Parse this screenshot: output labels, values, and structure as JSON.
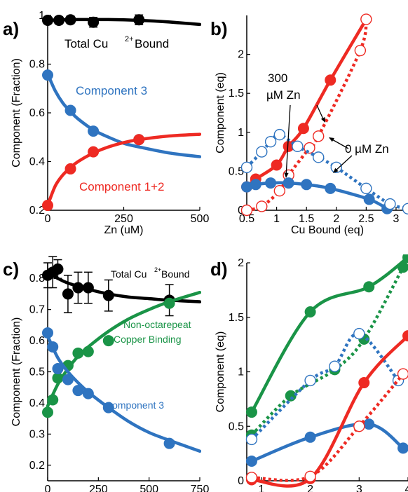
{
  "colors": {
    "black": "#000000",
    "blue": "#2f74c0",
    "red": "#ee2a23",
    "green": "#1a9447"
  },
  "chart_data": [
    {
      "panel": "a)",
      "type": "line",
      "xlabel": "Zn (uM)",
      "ylabel": "Component (Fraction)",
      "xlim": [
        0,
        500
      ],
      "ylim": [
        0.2,
        1.0
      ],
      "xticks": [
        "0",
        "250",
        "500"
      ],
      "yticks": [
        "0.2",
        "0.4",
        "0.6",
        "0.8",
        "1"
      ],
      "annotations": [
        "Total Cu",
        "2+",
        " Bound",
        "Component 3",
        "Component 1+2"
      ],
      "series": [
        {
          "color": "black",
          "points": {
            "x": [
              0,
              37,
              75,
              150,
              300
            ],
            "y": [
              0.98,
              0.98,
              0.982,
              0.972,
              0.982
            ]
          },
          "error": [
            0.01,
            0.015,
            0.015,
            0.02,
            0.02
          ],
          "fit": {
            "x": [
              0,
              50,
              100,
              150,
              200,
              250,
              300,
              350,
              400,
              450,
              500
            ],
            "y": [
              0.98,
              0.982,
              0.983,
              0.983,
              0.983,
              0.982,
              0.98,
              0.977,
              0.973,
              0.968,
              0.963
            ]
          }
        },
        {
          "color": "blue",
          "points": {
            "x": [
              0,
              75,
              150,
              300
            ],
            "y": [
              0.755,
              0.61,
              0.525,
              0.49
            ]
          },
          "fit": {
            "x": [
              0,
              25,
              50,
              75,
              100,
              150,
              200,
              250,
              300,
              400,
              500
            ],
            "y": [
              0.76,
              0.69,
              0.64,
              0.605,
              0.575,
              0.53,
              0.5,
              0.475,
              0.46,
              0.435,
              0.42
            ]
          }
        },
        {
          "color": "red",
          "points": {
            "x": [
              0,
              75,
              150,
              300
            ],
            "y": [
              0.22,
              0.37,
              0.44,
              0.49
            ]
          },
          "fit": {
            "x": [
              0,
              25,
              50,
              75,
              100,
              150,
              200,
              250,
              300,
              400,
              500
            ],
            "y": [
              0.22,
              0.3,
              0.345,
              0.375,
              0.4,
              0.435,
              0.46,
              0.478,
              0.49,
              0.505,
              0.512
            ]
          }
        }
      ]
    },
    {
      "panel": "b)",
      "type": "line",
      "xlabel": "Cu Bound (eq)",
      "ylabel": "Component (eq)",
      "xlim": [
        0.5,
        3.2
      ],
      "ylim": [
        0,
        2.5
      ],
      "xticks": [
        "0.5",
        "1",
        "1.5",
        "2",
        "2.5",
        "3"
      ],
      "yticks": [
        "0",
        "0.5",
        "1",
        "1.5",
        "2"
      ],
      "annotations": [
        "300",
        "µM Zn",
        "0 µM Zn"
      ],
      "series": [
        {
          "color": "red",
          "filled": true,
          "solid_line": true,
          "points": {
            "x": [
              0.5,
              0.65,
              1.0,
              1.2,
              1.45,
              1.9,
              2.5
            ],
            "y": [
              0.3,
              0.4,
              0.58,
              0.82,
              1.05,
              1.67,
              2.45
            ]
          }
        },
        {
          "color": "red",
          "filled": false,
          "dotted_line": true,
          "points": {
            "x": [
              0.5,
              0.75,
              1.05,
              1.2,
              1.55,
              1.7,
              2.4,
              2.5
            ],
            "y": [
              0,
              0.05,
              0.25,
              0.45,
              0.8,
              0.95,
              2.05,
              2.45
            ]
          }
        },
        {
          "color": "blue",
          "filled": true,
          "solid_line": true,
          "points": {
            "x": [
              0.5,
              0.65,
              0.9,
              1.2,
              1.5,
              1.9,
              2.55,
              2.85
            ],
            "y": [
              0.3,
              0.33,
              0.35,
              0.35,
              0.33,
              0.28,
              0.14,
              0.02
            ]
          }
        },
        {
          "color": "blue",
          "filled": false,
          "dotted_line": true,
          "points": {
            "x": [
              0.5,
              0.75,
              0.9,
              1.05,
              1.35,
              1.7,
              2.0,
              2.5,
              2.9,
              3.2
            ],
            "y": [
              0.55,
              0.75,
              0.88,
              0.97,
              0.82,
              0.68,
              0.55,
              0.28,
              0.08,
              0.02
            ]
          }
        }
      ]
    },
    {
      "panel": "c)",
      "type": "line",
      "xlabel": "Zn (uM)",
      "ylabel": "Component (Fraction)",
      "xlim": [
        0,
        750
      ],
      "ylim": [
        0.15,
        0.85
      ],
      "xticks": [
        "0",
        "250",
        "500",
        "750"
      ],
      "yticks": [
        "0.2",
        "0.3",
        "0.4",
        "0.5",
        "0.6",
        "0.7",
        "0.8"
      ],
      "annotations": [
        "Total Cu",
        "2+",
        " Bound",
        "Non-octarepeat",
        "Copper Binding",
        "Component 3"
      ],
      "series": [
        {
          "color": "black",
          "points": {
            "x": [
              0,
              25,
              50,
              100,
              150,
              200,
              300,
              600
            ],
            "y": [
              0.81,
              0.82,
              0.83,
              0.75,
              0.77,
              0.77,
              0.745,
              0.73
            ]
          },
          "error": [
            0.04,
            0.05,
            0.03,
            0.06,
            0.05,
            0.05,
            0.05,
            0.05
          ],
          "fit": {
            "x": [
              0,
              50,
              100,
              200,
              300,
              400,
              500,
              600,
              750
            ],
            "y": [
              0.82,
              0.8,
              0.785,
              0.765,
              0.75,
              0.74,
              0.735,
              0.73,
              0.725
            ]
          }
        },
        {
          "color": "green",
          "points": {
            "x": [
              0,
              25,
              50,
              100,
              150,
              200,
              300,
              600
            ],
            "y": [
              0.37,
              0.41,
              0.48,
              0.52,
              0.56,
              0.565,
              0.6,
              0.72
            ]
          },
          "fit": {
            "x": [
              0,
              50,
              100,
              150,
              200,
              300,
              400,
              500,
              600,
              750
            ],
            "y": [
              0.39,
              0.46,
              0.51,
              0.55,
              0.58,
              0.63,
              0.67,
              0.7,
              0.725,
              0.755
            ]
          }
        },
        {
          "color": "blue",
          "points": {
            "x": [
              0,
              25,
              50,
              100,
              150,
              200,
              300,
              600
            ],
            "y": [
              0.625,
              0.58,
              0.51,
              0.475,
              0.44,
              0.43,
              0.385,
              0.27
            ]
          },
          "fit": {
            "x": [
              0,
              50,
              100,
              150,
              200,
              300,
              400,
              500,
              600,
              750
            ],
            "y": [
              0.615,
              0.545,
              0.5,
              0.465,
              0.435,
              0.385,
              0.34,
              0.305,
              0.28,
              0.245
            ]
          }
        }
      ]
    },
    {
      "panel": "d)",
      "type": "line",
      "xlabel": "Cu Bound (eq)",
      "ylabel": "Component (eq)",
      "xlim": [
        0.7,
        4.0
      ],
      "ylim": [
        0,
        2.0
      ],
      "xticks": [
        "1",
        "2",
        "3",
        "4"
      ],
      "yticks": [
        "0",
        "0.5",
        "1",
        "1.5",
        "2"
      ],
      "annotations": [],
      "series": [
        {
          "color": "green",
          "filled": true,
          "solid_line": true,
          "points": {
            "x": [
              0.8,
              2.0,
              3.2,
              4.0
            ],
            "y": [
              0.63,
              1.55,
              1.78,
              2.05
            ]
          }
        },
        {
          "color": "green",
          "filled": true,
          "dotted_line": true,
          "points": {
            "x": [
              0.8,
              1.6,
              2.5,
              3.1,
              3.9
            ],
            "y": [
              0.42,
              0.78,
              1.02,
              1.3,
              1.96
            ]
          }
        },
        {
          "color": "blue",
          "filled": true,
          "solid_line": true,
          "points": {
            "x": [
              0.8,
              2.0,
              3.2,
              3.9
            ],
            "y": [
              0.18,
              0.4,
              0.52,
              0.3
            ]
          }
        },
        {
          "color": "blue",
          "filled": false,
          "dotted_line": true,
          "points": {
            "x": [
              0.8,
              2.0,
              2.5,
              3.0,
              3.8
            ],
            "y": [
              0.38,
              0.92,
              1.05,
              1.35,
              0.92
            ]
          }
        },
        {
          "color": "red",
          "filled": true,
          "solid_line": true,
          "points": {
            "x": [
              0.8,
              2.0,
              3.1,
              4.0
            ],
            "y": [
              0.01,
              0.02,
              0.9,
              1.33
            ]
          }
        },
        {
          "color": "red",
          "filled": false,
          "dotted_line": true,
          "points": {
            "x": [
              0.8,
              2.0,
              3.0,
              3.9
            ],
            "y": [
              0.03,
              0.04,
              0.5,
              0.98
            ]
          }
        }
      ]
    }
  ]
}
